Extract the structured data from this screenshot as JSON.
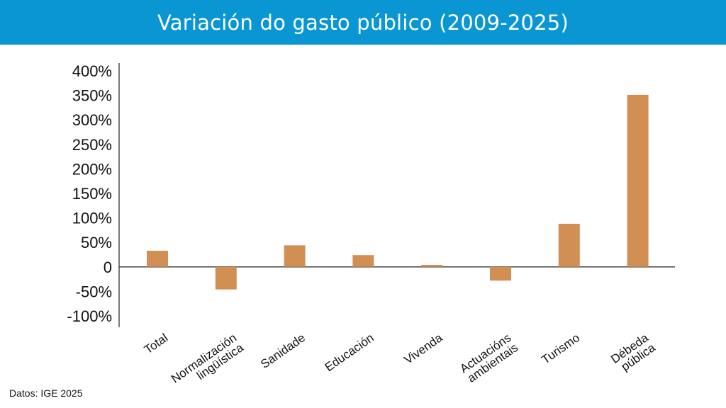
{
  "header": {
    "title": "Variación do gasto público (2009-2025)"
  },
  "source": "Datos: IGE 2025",
  "colors": {
    "header_bg": "#0a96d2",
    "bar": "#d28f54",
    "text": "#111111"
  },
  "chart_data": {
    "type": "bar",
    "title": "Variación do gasto público (2009-2025)",
    "xlabel": "",
    "ylabel": "",
    "categories": [
      [
        "Total"
      ],
      [
        "Normalización",
        "lingüística"
      ],
      [
        "Sanidade"
      ],
      [
        "Educación"
      ],
      [
        "Vivenda"
      ],
      [
        "Actuacións",
        "ambientais"
      ],
      [
        "Turismo"
      ],
      [
        "Débeda",
        "pública"
      ]
    ],
    "values": [
      33,
      -46,
      44,
      24,
      4,
      -28,
      88,
      351
    ],
    "ylim": [
      -100,
      400
    ],
    "yticks": [
      400,
      350,
      300,
      250,
      200,
      150,
      100,
      50,
      0,
      -50,
      -100
    ],
    "ytick_labels": [
      "400%",
      "350%",
      "300%",
      "250%",
      "200%",
      "150%",
      "100%",
      "50%",
      "0",
      "-50%",
      "-100%"
    ],
    "grid": false,
    "legend": "none"
  }
}
